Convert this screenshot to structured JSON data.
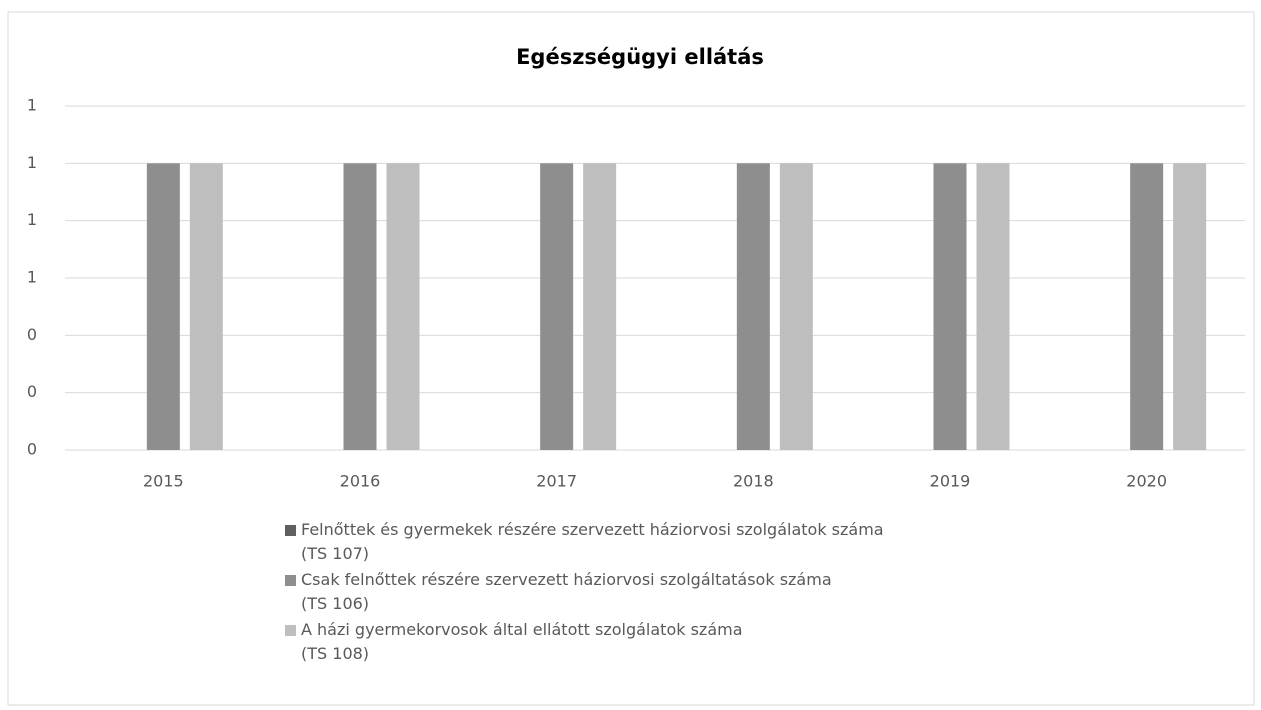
{
  "chart_data": {
    "type": "bar",
    "title": "Egészségügyi ellátás",
    "categories": [
      "2015",
      "2016",
      "2017",
      "2018",
      "2019",
      "2020"
    ],
    "series": [
      {
        "name": "Felnőttek és gyermekek részére szervezett háziorvosi szolgálatok száma\n(TS 107)",
        "color": "#5f5f5f",
        "values": [
          0,
          0,
          0,
          0,
          0,
          0
        ]
      },
      {
        "name": "Csak felnőttek részére szervezett háziorvosi szolgáltatások száma\n(TS 106)",
        "color": "#8e8e8e",
        "values": [
          1,
          1,
          1,
          1,
          1,
          1
        ]
      },
      {
        "name": "A házi gyermekorvosok által ellátott szolgálatok száma\n(TS 108)",
        "color": "#bebebe",
        "values": [
          1,
          1,
          1,
          1,
          1,
          1
        ]
      }
    ],
    "ylim": [
      0,
      1.2
    ],
    "yticks": [
      0,
      {
        "value": 0.2,
        "label": "0"
      },
      {
        "value": 0.4,
        "label": "0"
      },
      {
        "value": 0.6,
        "label": "1"
      },
      {
        "value": 0.8,
        "label": "1"
      },
      1,
      {
        "value": 1.2,
        "label": "1"
      }
    ],
    "grid": true,
    "legend": "bottom"
  }
}
